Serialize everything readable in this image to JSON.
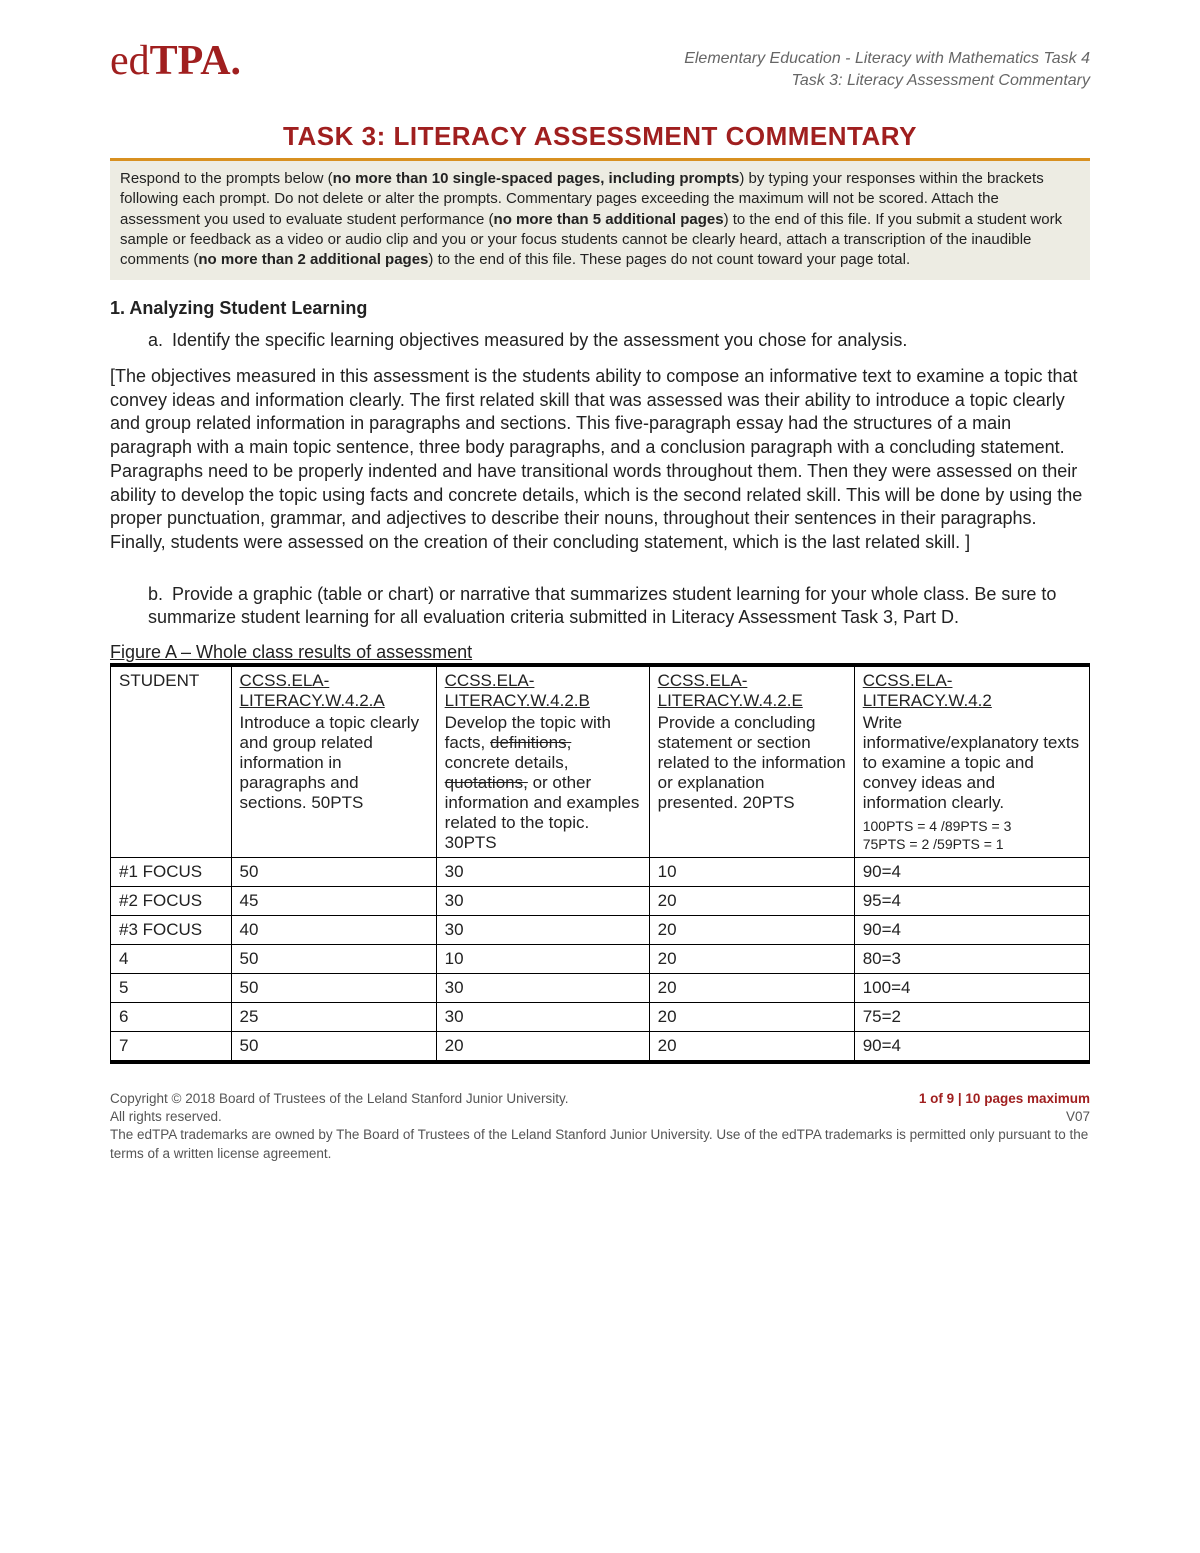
{
  "header": {
    "logo_ed": "ed",
    "logo_tpa": "TPA.",
    "line1": "Elementary Education - Literacy with Mathematics Task 4",
    "line2": "Task 3: Literacy Assessment Commentary"
  },
  "title": "TASK 3: LITERACY ASSESSMENT COMMENTARY",
  "instructions": {
    "part1": "Respond to the prompts below (",
    "bold1": "no more than 10 single-spaced pages, including prompts",
    "part2": ") by typing your responses within the brackets following each prompt. Do not delete or alter the prompts. Commentary pages exceeding the maximum will not be scored. Attach the assessment you used to evaluate student performance (",
    "bold2": "no more than 5 additional pages",
    "part3": ") to the end of this file. If you submit a student work sample or feedback as a video or audio clip and you or your focus students cannot be clearly heard, attach a transcription of the inaudible comments (",
    "bold3": "no more than 2 additional pages",
    "part4": ") to the end of this file. These pages do not count toward your page total."
  },
  "section1": {
    "number_title": "1.   Analyzing Student Learning",
    "a_letter": "a.",
    "a_text": "Identify the specific learning objectives measured by the assessment you chose for analysis.",
    "answer_a": "[The objectives measured in this assessment is the students ability to compose an informative text to examine a topic that convey ideas and information clearly.  The first related skill that was assessed was their ability to introduce a topic clearly and group related information in paragraphs and sections. This five-paragraph essay had the structures of a main paragraph with a main topic sentence, three body paragraphs, and a conclusion paragraph with a concluding statement.  Paragraphs need to be properly indented and have transitional words throughout them. Then they were assessed on their ability to develop the topic using facts and concrete details, which is the second related skill.  This will be done by using the proper punctuation, grammar, and adjectives to describe their nouns, throughout their sentences in their paragraphs.  Finally, students were assessed on the creation of their concluding statement, which is the last related skill. ]",
    "b_letter": "b.",
    "b_text": "Provide a graphic (table or chart) or narrative that summarizes student learning for your whole class. Be sure to summarize student learning for all evaluation criteria submitted in Literacy Assessment Task 3, Part D.",
    "figure_caption": "Figure A – Whole class results of assessment"
  },
  "table": {
    "headers": {
      "student": "STUDENT",
      "colA": {
        "link": "CCSS.ELA-LITERACY.W.4.2.A",
        "desc": "Introduce a topic clearly and group related information in paragraphs and sections. 50PTS"
      },
      "colB": {
        "link": "CCSS.ELA-LITERACY.W.4.2.B",
        "desc_pre": "Develop the topic with facts, ",
        "strike1": "definitions,",
        "desc_mid": " concrete details, ",
        "strike2": "quotations,",
        "desc_post": " or other information and examples related to the topic. 30PTS"
      },
      "colE": {
        "link": "CCSS.ELA-LITERACY.W.4.2.E",
        "desc": "Provide a concluding statement or section related to the information or explanation presented. 20PTS"
      },
      "colLast": {
        "link": "CCSS.ELA-LITERACY.W.4.2",
        "desc": "Write informative/explanatory texts to examine a topic and convey ideas and information clearly.",
        "scale1": "100PTS = 4 /89PTS = 3",
        "scale2": "75PTS = 2 /59PTS = 1"
      }
    },
    "rows": [
      {
        "s": "#1 FOCUS",
        "a": "50",
        "b": "30",
        "e": "10",
        "t": "90=4"
      },
      {
        "s": "#2 FOCUS",
        "a": "45",
        "b": "30",
        "e": "20",
        "t": "95=4"
      },
      {
        "s": "#3 FOCUS",
        "a": "40",
        "b": "30",
        "e": "20",
        "t": "90=4"
      },
      {
        "s": "4",
        "a": "50",
        "b": "10",
        "e": "20",
        "t": "80=3"
      },
      {
        "s": "5",
        "a": "50",
        "b": "30",
        "e": "20",
        "t": "100=4"
      },
      {
        "s": "6",
        "a": "25",
        "b": "30",
        "e": "20",
        "t": "75=2"
      },
      {
        "s": "7",
        "a": "50",
        "b": "20",
        "e": "20",
        "t": "90=4"
      }
    ]
  },
  "footer": {
    "copy1": "Copyright © 2018 Board of Trustees of the Leland Stanford Junior University.",
    "copy2": "All rights reserved.",
    "tm": "The edTPA trademarks are owned by The Board of Trustees of the Leland Stanford Junior University. Use of the edTPA trademarks is permitted only pursuant to the terms of a written license agreement.",
    "page": "1 of 9 | 10 pages maximum",
    "ver": "V07"
  }
}
